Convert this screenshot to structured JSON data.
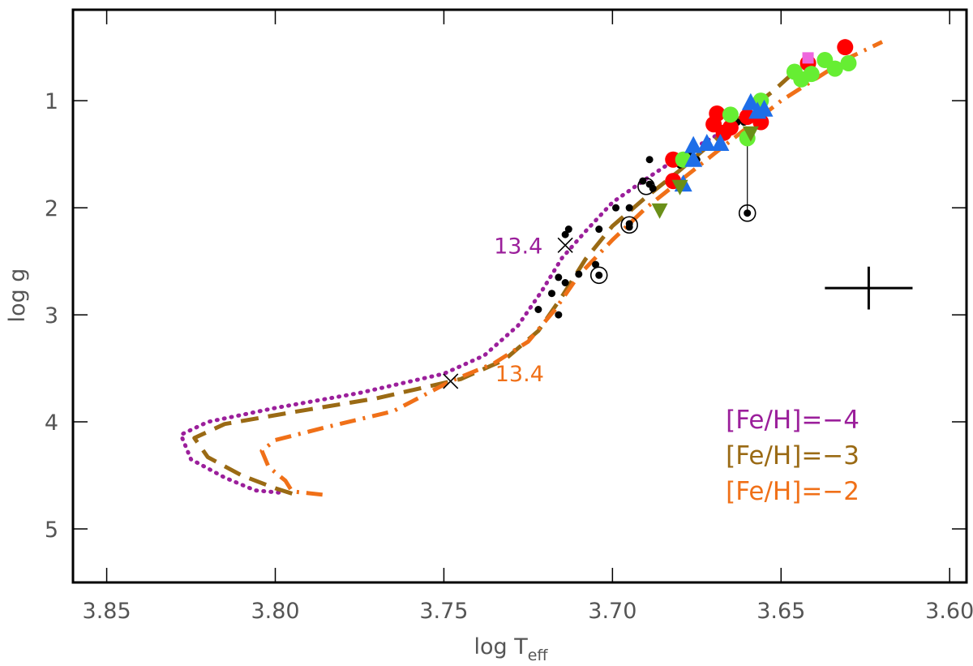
{
  "chart_data": {
    "type": "scatter",
    "title": "",
    "xlabel": "log T",
    "xlabel_sub": "eff",
    "ylabel": "log g",
    "xlim": [
      3.86,
      3.595
    ],
    "ylim": [
      5.5,
      0.15
    ],
    "x_ticks": [
      3.85,
      3.8,
      3.75,
      3.7,
      3.65,
      3.6
    ],
    "x_tick_labels": [
      "3.85",
      "3.80",
      "3.75",
      "3.70",
      "3.65",
      "3.60"
    ],
    "y_ticks": [
      1,
      2,
      3,
      4,
      5
    ],
    "y_tick_labels": [
      "1",
      "2",
      "3",
      "4",
      "5"
    ],
    "isochrones": [
      {
        "name": "[Fe/H]=-4",
        "color": "#9b1f9b",
        "style": "dotted",
        "points": [
          [
            3.799,
            4.66
          ],
          [
            3.806,
            4.64
          ],
          [
            3.815,
            4.52
          ],
          [
            3.825,
            4.35
          ],
          [
            3.828,
            4.12
          ],
          [
            3.82,
            4.0
          ],
          [
            3.8,
            3.87
          ],
          [
            3.775,
            3.73
          ],
          [
            3.75,
            3.55
          ],
          [
            3.738,
            3.38
          ],
          [
            3.728,
            3.1
          ],
          [
            3.721,
            2.78
          ],
          [
            3.715,
            2.47
          ],
          [
            3.708,
            2.22
          ],
          [
            3.7,
            1.95
          ],
          [
            3.69,
            1.73
          ],
          [
            3.678,
            1.48
          ],
          [
            3.665,
            1.25
          ],
          [
            3.655,
            1.05
          ]
        ]
      },
      {
        "name": "[Fe/H]=-3",
        "color": "#9a6a14",
        "style": "dashed",
        "points": [
          [
            3.795,
            4.67
          ],
          [
            3.8,
            4.62
          ],
          [
            3.81,
            4.5
          ],
          [
            3.82,
            4.33
          ],
          [
            3.824,
            4.15
          ],
          [
            3.815,
            4.02
          ],
          [
            3.795,
            3.91
          ],
          [
            3.77,
            3.78
          ],
          [
            3.745,
            3.6
          ],
          [
            3.732,
            3.42
          ],
          [
            3.722,
            3.15
          ],
          [
            3.715,
            2.83
          ],
          [
            3.708,
            2.48
          ],
          [
            3.7,
            2.17
          ],
          [
            3.69,
            1.9
          ],
          [
            3.68,
            1.65
          ],
          [
            3.67,
            1.38
          ],
          [
            3.66,
            1.1
          ],
          [
            3.652,
            0.9
          ],
          [
            3.646,
            0.73
          ]
        ]
      },
      {
        "name": "[Fe/H]=-2",
        "color": "#f07018",
        "style": "dashdot",
        "points": [
          [
            3.786,
            4.68
          ],
          [
            3.795,
            4.65
          ],
          [
            3.797,
            4.55
          ],
          [
            3.802,
            4.42
          ],
          [
            3.804,
            4.27
          ],
          [
            3.8,
            4.17
          ],
          [
            3.785,
            4.05
          ],
          [
            3.765,
            3.9
          ],
          [
            3.748,
            3.62
          ],
          [
            3.735,
            3.45
          ],
          [
            3.725,
            3.25
          ],
          [
            3.717,
            2.95
          ],
          [
            3.71,
            2.63
          ],
          [
            3.7,
            2.3
          ],
          [
            3.69,
            2.0
          ],
          [
            3.68,
            1.75
          ],
          [
            3.67,
            1.5
          ],
          [
            3.66,
            1.25
          ],
          [
            3.65,
            1.0
          ],
          [
            3.64,
            0.8
          ],
          [
            3.63,
            0.6
          ],
          [
            3.62,
            0.45
          ]
        ]
      }
    ],
    "turnoff_markers": [
      {
        "x": 3.714,
        "y": 2.35,
        "label": "13.4",
        "series": "[Fe/H]=-4"
      },
      {
        "x": 3.748,
        "y": 3.62,
        "label": "13.4",
        "series": "[Fe/H]=-2"
      }
    ],
    "error_bar": {
      "x": 3.624,
      "y": 2.75,
      "dx": 0.013,
      "dy": 0.2
    },
    "series": [
      {
        "name": "black dots",
        "marker": "small-dot",
        "color": "#000000",
        "points": [
          [
            3.689,
            1.55
          ],
          [
            3.691,
            1.75
          ],
          [
            3.689,
            1.78
          ],
          [
            3.688,
            1.82
          ],
          [
            3.695,
            2.0
          ],
          [
            3.699,
            2.0
          ],
          [
            3.695,
            2.15
          ],
          [
            3.695,
            2.18
          ],
          [
            3.704,
            2.2
          ],
          [
            3.713,
            2.2
          ],
          [
            3.714,
            2.25
          ],
          [
            3.71,
            2.62
          ],
          [
            3.705,
            2.53
          ],
          [
            3.704,
            2.63
          ],
          [
            3.716,
            2.65
          ],
          [
            3.714,
            2.7
          ],
          [
            3.718,
            2.8
          ],
          [
            3.722,
            2.95
          ],
          [
            3.716,
            3.0
          ],
          [
            3.677,
            1.5
          ],
          [
            3.675,
            1.55
          ],
          [
            3.68,
            1.6
          ],
          [
            3.663,
            1.2
          ],
          [
            3.661,
            1.2
          ],
          [
            3.659,
            1.28
          ],
          [
            3.66,
            2.05
          ]
        ]
      },
      {
        "name": "circled dots",
        "marker": "circled-dot",
        "color": "#000000",
        "points": [
          [
            3.69,
            1.8
          ],
          [
            3.695,
            2.16
          ],
          [
            3.704,
            2.63
          ],
          [
            3.66,
            2.05
          ]
        ]
      },
      {
        "name": "red circles",
        "marker": "circle",
        "color": "#ff0000",
        "points": [
          [
            3.631,
            0.5
          ],
          [
            3.642,
            0.65
          ],
          [
            3.669,
            1.12
          ],
          [
            3.67,
            1.22
          ],
          [
            3.665,
            1.25
          ],
          [
            3.667,
            1.3
          ],
          [
            3.66,
            1.15
          ],
          [
            3.656,
            1.2
          ],
          [
            3.682,
            1.55
          ],
          [
            3.682,
            1.75
          ]
        ]
      },
      {
        "name": "green circles",
        "marker": "circle",
        "color": "#66ee33",
        "points": [
          [
            3.646,
            0.73
          ],
          [
            3.644,
            0.8
          ],
          [
            3.641,
            0.75
          ],
          [
            3.637,
            0.62
          ],
          [
            3.634,
            0.7
          ],
          [
            3.63,
            0.65
          ],
          [
            3.656,
            1.0
          ],
          [
            3.665,
            1.13
          ],
          [
            3.66,
            1.35
          ],
          [
            3.679,
            1.55
          ]
        ]
      },
      {
        "name": "blue triangles",
        "marker": "triangle-up",
        "color": "#1e6ee8",
        "points": [
          [
            3.659,
            1.02
          ],
          [
            3.657,
            1.1
          ],
          [
            3.655,
            1.08
          ],
          [
            3.668,
            1.4
          ],
          [
            3.672,
            1.4
          ],
          [
            3.676,
            1.42
          ],
          [
            3.676,
            1.55
          ],
          [
            3.679,
            1.78
          ]
        ]
      },
      {
        "name": "olive triangles",
        "marker": "triangle-down",
        "color": "#6a8f18",
        "points": [
          [
            3.659,
            1.3
          ],
          [
            3.686,
            2.02
          ],
          [
            3.68,
            1.8
          ]
        ]
      },
      {
        "name": "magenta square",
        "marker": "square",
        "color": "#ee66dd",
        "points": [
          [
            3.642,
            0.6
          ]
        ]
      }
    ],
    "legend": {
      "placement": "bottom-right",
      "entries": [
        {
          "label": "[Fe/H]=−4",
          "color": "#9b1f9b"
        },
        {
          "label": "[Fe/H]=−3",
          "color": "#9a6a14"
        },
        {
          "label": "[Fe/H]=−2",
          "color": "#f07018"
        }
      ]
    },
    "grid": false
  }
}
